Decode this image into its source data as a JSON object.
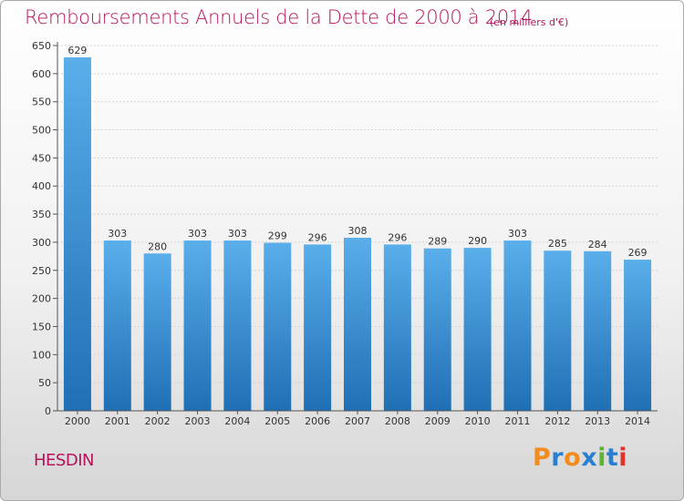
{
  "title": "Remboursements Annuels de la Dette de 2000 à 2014",
  "unit": "(en milliers d'€)",
  "city": "HESDIN",
  "logo": {
    "letters": [
      "P",
      "r",
      "o",
      "x",
      "i",
      "t",
      "i"
    ],
    "colors": [
      "#f28c1e",
      "#2b7fd0",
      "#f28c1e",
      "#2b7fd0",
      "#5cb531",
      "#2b7fd0",
      "#e5312c"
    ]
  },
  "chart_data": {
    "type": "bar",
    "categories": [
      "2000",
      "2001",
      "2002",
      "2003",
      "2004",
      "2005",
      "2006",
      "2007",
      "2008",
      "2009",
      "2010",
      "2011",
      "2012",
      "2013",
      "2014"
    ],
    "values": [
      629,
      303,
      280,
      303,
      303,
      299,
      296,
      308,
      296,
      289,
      290,
      303,
      285,
      284,
      269
    ],
    "data_labels": [
      "629",
      "303",
      "280",
      "303",
      "303",
      "299",
      "296",
      "308",
      "296",
      "289",
      "290",
      "303",
      "285",
      "284",
      "269"
    ],
    "yticks": [
      "0",
      "50",
      "100",
      "150",
      "200",
      "250",
      "300",
      "350",
      "400",
      "450",
      "500",
      "550",
      "600",
      "650"
    ],
    "ylim": [
      0,
      650
    ],
    "grid": true,
    "bar_color": "#3d8fd6",
    "bar_color_top": "#5aaeea",
    "bar_color_bottom": "#1f6fb5",
    "title": "Remboursements Annuels de la Dette de 2000 à 2014",
    "xlabel": "",
    "ylabel": ""
  }
}
